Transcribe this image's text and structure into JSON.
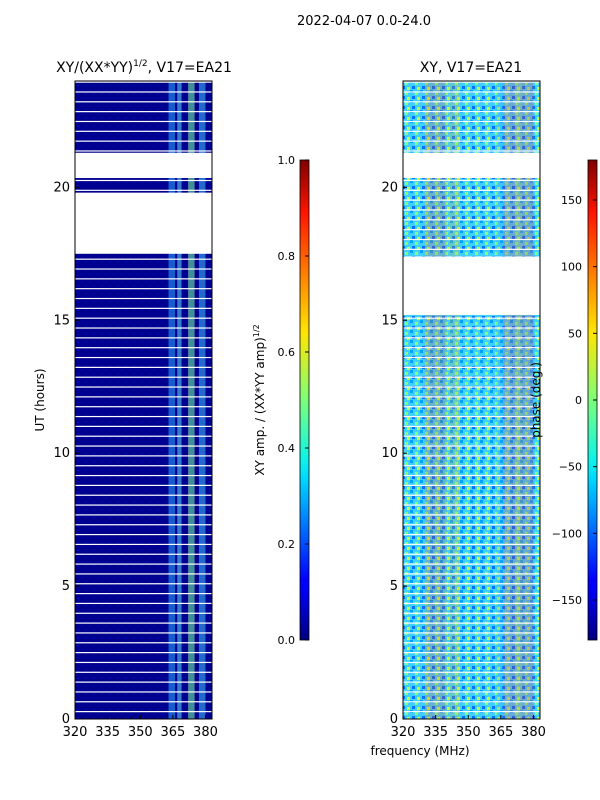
{
  "figure": {
    "suptitle": "2022-04-07 0.0-24.0",
    "shared_xlabel": "frequency (MHz)"
  },
  "colors": {
    "jet_low": "#00007f",
    "jet_high": "#7f0000",
    "missing": "#ffffff"
  },
  "chart_data": [
    {
      "type": "heatmap",
      "panel": "left",
      "title_prefix": "XY/(XX*YY)",
      "title_exp": "1/2",
      "title_suffix": ", V17=EA21",
      "xlabel": "",
      "ylabel": "UT (hours)",
      "xlim": [
        320,
        383
      ],
      "ylim": [
        0,
        24
      ],
      "xticks": [
        320,
        335,
        350,
        365,
        380
      ],
      "yticks": [
        0,
        5,
        10,
        15,
        20
      ],
      "gaps_ut": [
        [
          17.5,
          19.8
        ],
        [
          20.35,
          21.3
        ]
      ],
      "colorbar": {
        "label": "XY amp. / (XX*YY amp)^1/2",
        "range": [
          0.0,
          1.0
        ],
        "ticks": [
          "0.0",
          "0.2",
          "0.4",
          "0.6",
          "0.8",
          "1.0"
        ]
      }
    },
    {
      "type": "heatmap",
      "panel": "right",
      "title": "XY, V17=EA21",
      "xlabel": "frequency (MHz)",
      "ylabel": "",
      "xlim": [
        320,
        383
      ],
      "ylim": [
        0,
        24
      ],
      "xticks": [
        320,
        335,
        350,
        365,
        380
      ],
      "yticks": [
        0,
        5,
        10,
        15,
        20
      ],
      "gaps_ut": [
        [
          15.2,
          17.4
        ],
        [
          20.35,
          21.3
        ]
      ],
      "colorbar": {
        "label": "phase (deg.)",
        "range": [
          -180,
          180
        ],
        "ticks": [
          "−150",
          "−100",
          "−50",
          "0",
          "50",
          "100",
          "150"
        ]
      }
    }
  ]
}
